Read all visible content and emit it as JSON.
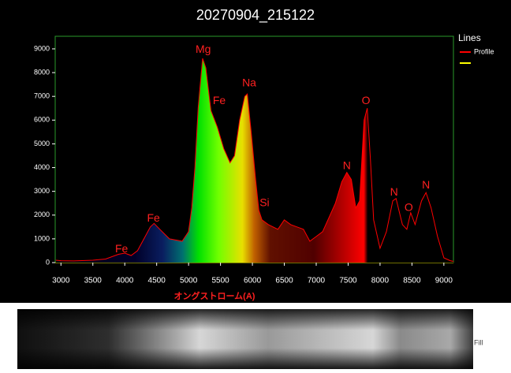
{
  "chart_data": {
    "type": "area",
    "title": "20270904_215122",
    "x_label": "オングストローム(A)",
    "legend_title": "Lines",
    "series": [
      {
        "name": "Profile",
        "color": "#ff0000",
        "x": [
          2920,
          3000,
          3200,
          3500,
          3700,
          3900,
          4000,
          4100,
          4200,
          4300,
          4400,
          4460,
          4550,
          4700,
          4900,
          5000,
          5050,
          5100,
          5150,
          5220,
          5270,
          5350,
          5450,
          5550,
          5650,
          5720,
          5800,
          5880,
          5920,
          5980,
          6050,
          6100,
          6150,
          6250,
          6400,
          6500,
          6600,
          6700,
          6800,
          6900,
          7000,
          7100,
          7200,
          7300,
          7400,
          7480,
          7550,
          7620,
          7680,
          7750,
          7800,
          7850,
          7900,
          8000,
          8100,
          8200,
          8250,
          8350,
          8420,
          8480,
          8550,
          8650,
          8720,
          8800,
          8900,
          9000,
          9100,
          9150
        ],
        "values": [
          100,
          80,
          70,
          100,
          150,
          350,
          400,
          300,
          500,
          1000,
          1500,
          1650,
          1400,
          1000,
          900,
          1300,
          2300,
          4000,
          6500,
          8600,
          8200,
          6400,
          5700,
          4800,
          4200,
          4500,
          6000,
          7000,
          7100,
          5500,
          3500,
          2200,
          1800,
          1600,
          1400,
          1800,
          1600,
          1500,
          1400,
          900,
          1100,
          1300,
          1900,
          2500,
          3400,
          3800,
          3500,
          2300,
          2600,
          6000,
          6500,
          4300,
          1800,
          600,
          1300,
          2600,
          2700,
          1600,
          1400,
          2100,
          1600,
          2600,
          2950,
          2300,
          1100,
          200,
          80,
          50
        ]
      }
    ],
    "annotations": [
      {
        "text": "Fe",
        "x": 3950,
        "y": 550
      },
      {
        "text": "Fe",
        "x": 4450,
        "y": 1850
      },
      {
        "text": "Mg",
        "x": 5230,
        "y": 8950
      },
      {
        "text": "Fe",
        "x": 5480,
        "y": 6800
      },
      {
        "text": "Na",
        "x": 5950,
        "y": 7550
      },
      {
        "text": "Si",
        "x": 6190,
        "y": 2500
      },
      {
        "text": "N",
        "x": 7480,
        "y": 4050
      },
      {
        "text": "O",
        "x": 7780,
        "y": 6800
      },
      {
        "text": "N",
        "x": 8220,
        "y": 2950
      },
      {
        "text": "O",
        "x": 8450,
        "y": 2300
      },
      {
        "text": "N",
        "x": 8720,
        "y": 3250
      }
    ],
    "xlim": [
      2910,
      9150
    ],
    "ylim": [
      0,
      9530
    ],
    "xticks": [
      3000,
      3500,
      4000,
      4500,
      5000,
      5500,
      6000,
      6500,
      7000,
      7500,
      8000,
      8500,
      9000
    ],
    "yticks": [
      0,
      1000,
      2000,
      3000,
      4000,
      5000,
      6000,
      7000,
      8000,
      9000
    ]
  },
  "image_strip": {
    "label": "Fill"
  }
}
